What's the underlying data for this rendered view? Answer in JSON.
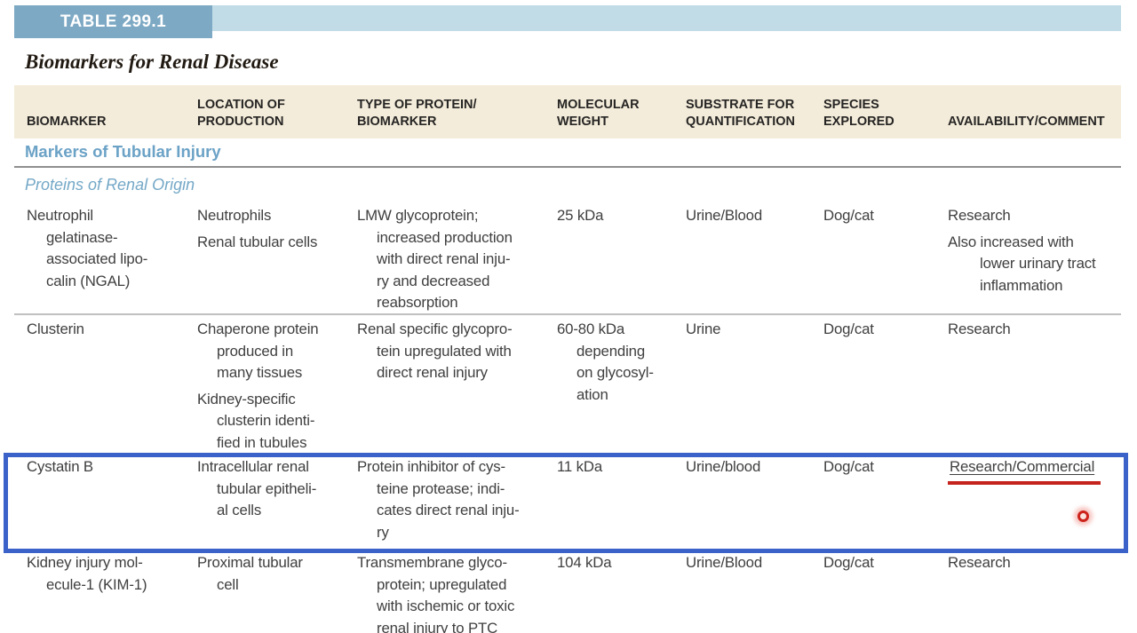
{
  "page": {
    "table_tag": "TABLE 299.1",
    "title": "Biomarkers for Renal Disease"
  },
  "colors": {
    "band_light_blue": "#c1dce7",
    "band_dark_blue": "#7da9c4",
    "header_beige": "#f4ecda",
    "section_blue": "#6ba2c6",
    "body_text": "#3f3f3f",
    "highlight_border_blue": "#3a62c9",
    "annotation_red": "#c5231d"
  },
  "icons": {
    "click_indicator": "red-dot"
  },
  "table": {
    "column_keys": [
      "biomarker",
      "location-of-production",
      "type-of-protein-biomarker",
      "molecular-weight",
      "substrate-for-quantification",
      "species-explored",
      "availability-comment"
    ],
    "columns": [
      "BIOMARKER",
      "LOCATION OF\nPRODUCTION",
      "TYPE OF PROTEIN/\nBIOMARKER",
      "MOLECULAR\nWEIGHT",
      "SUBSTRATE FOR\nQUANTIFICATION",
      "SPECIES\nEXPLORED",
      "AVAILABILITY/COMMENT"
    ],
    "rows": [
      {
        "kind": "section",
        "label": "Markers of Tubular Injury"
      },
      {
        "kind": "subsection",
        "label": "Proteins of Renal Origin"
      },
      {
        "kind": "data",
        "id": "ngal",
        "row_class": "r1",
        "highlight": false,
        "red_underline": false,
        "cells": [
          [
            [
              "Neutrophil",
              "gelatinase-",
              "associated lipo-",
              "calin (NGAL)"
            ]
          ],
          [
            [
              "Neutrophils"
            ],
            [
              "Renal tubular cells"
            ]
          ],
          [
            [
              "LMW glycoprotein;",
              "increased production",
              "with direct renal inju-",
              "ry and decreased",
              "reabsorption"
            ]
          ],
          [
            [
              "25 kDa"
            ]
          ],
          [
            [
              "Urine/Blood"
            ]
          ],
          [
            [
              "Dog/cat"
            ]
          ],
          [
            [
              "Research"
            ],
            [
              "Also increased with",
              "lower urinary tract",
              "inflammation"
            ]
          ]
        ]
      },
      {
        "kind": "data",
        "id": "clusterin",
        "row_class": "r2",
        "highlight": false,
        "red_underline": false,
        "cells": [
          [
            [
              "Clusterin"
            ]
          ],
          [
            [
              "Chaperone protein",
              "produced in",
              "many tissues"
            ],
            [
              "Kidney-specific",
              "clusterin identi-",
              "fied in tubules"
            ]
          ],
          [
            [
              "Renal specific glycopro-",
              "tein upregulated with",
              "direct renal injury"
            ]
          ],
          [
            [
              "60-80 kDa",
              "depending",
              "on glycosyl-",
              "ation"
            ]
          ],
          [
            [
              "Urine"
            ]
          ],
          [
            [
              "Dog/cat"
            ]
          ],
          [
            [
              "Research"
            ]
          ]
        ]
      },
      {
        "kind": "data",
        "id": "cystatin-b",
        "row_class": "r3",
        "highlight": true,
        "red_underline": true,
        "cells": [
          [
            [
              "Cystatin B"
            ]
          ],
          [
            [
              "Intracellular renal",
              "tubular epitheli-",
              "al cells"
            ]
          ],
          [
            [
              "Protein inhibitor of cys-",
              "teine protease; indi-",
              "cates direct renal inju-",
              "ry"
            ]
          ],
          [
            [
              "11 kDa"
            ]
          ],
          [
            [
              "Urine/blood"
            ]
          ],
          [
            [
              "Dog/cat"
            ]
          ],
          [
            [
              "Research/Commercial"
            ]
          ]
        ]
      },
      {
        "kind": "data",
        "id": "kim-1",
        "row_class": "r4",
        "highlight": false,
        "red_underline": false,
        "cells": [
          [
            [
              "Kidney injury mol-",
              "ecule-1 (KIM-1)"
            ]
          ],
          [
            [
              "Proximal tubular",
              "cell"
            ]
          ],
          [
            [
              "Transmembrane glyco-",
              "protein; upregulated",
              "with ischemic or toxic",
              "renal injury to PTC"
            ]
          ],
          [
            [
              "104 kDa"
            ]
          ],
          [
            [
              "Urine/Blood"
            ]
          ],
          [
            [
              "Dog/cat"
            ]
          ],
          [
            [
              "Research"
            ]
          ]
        ]
      }
    ]
  }
}
